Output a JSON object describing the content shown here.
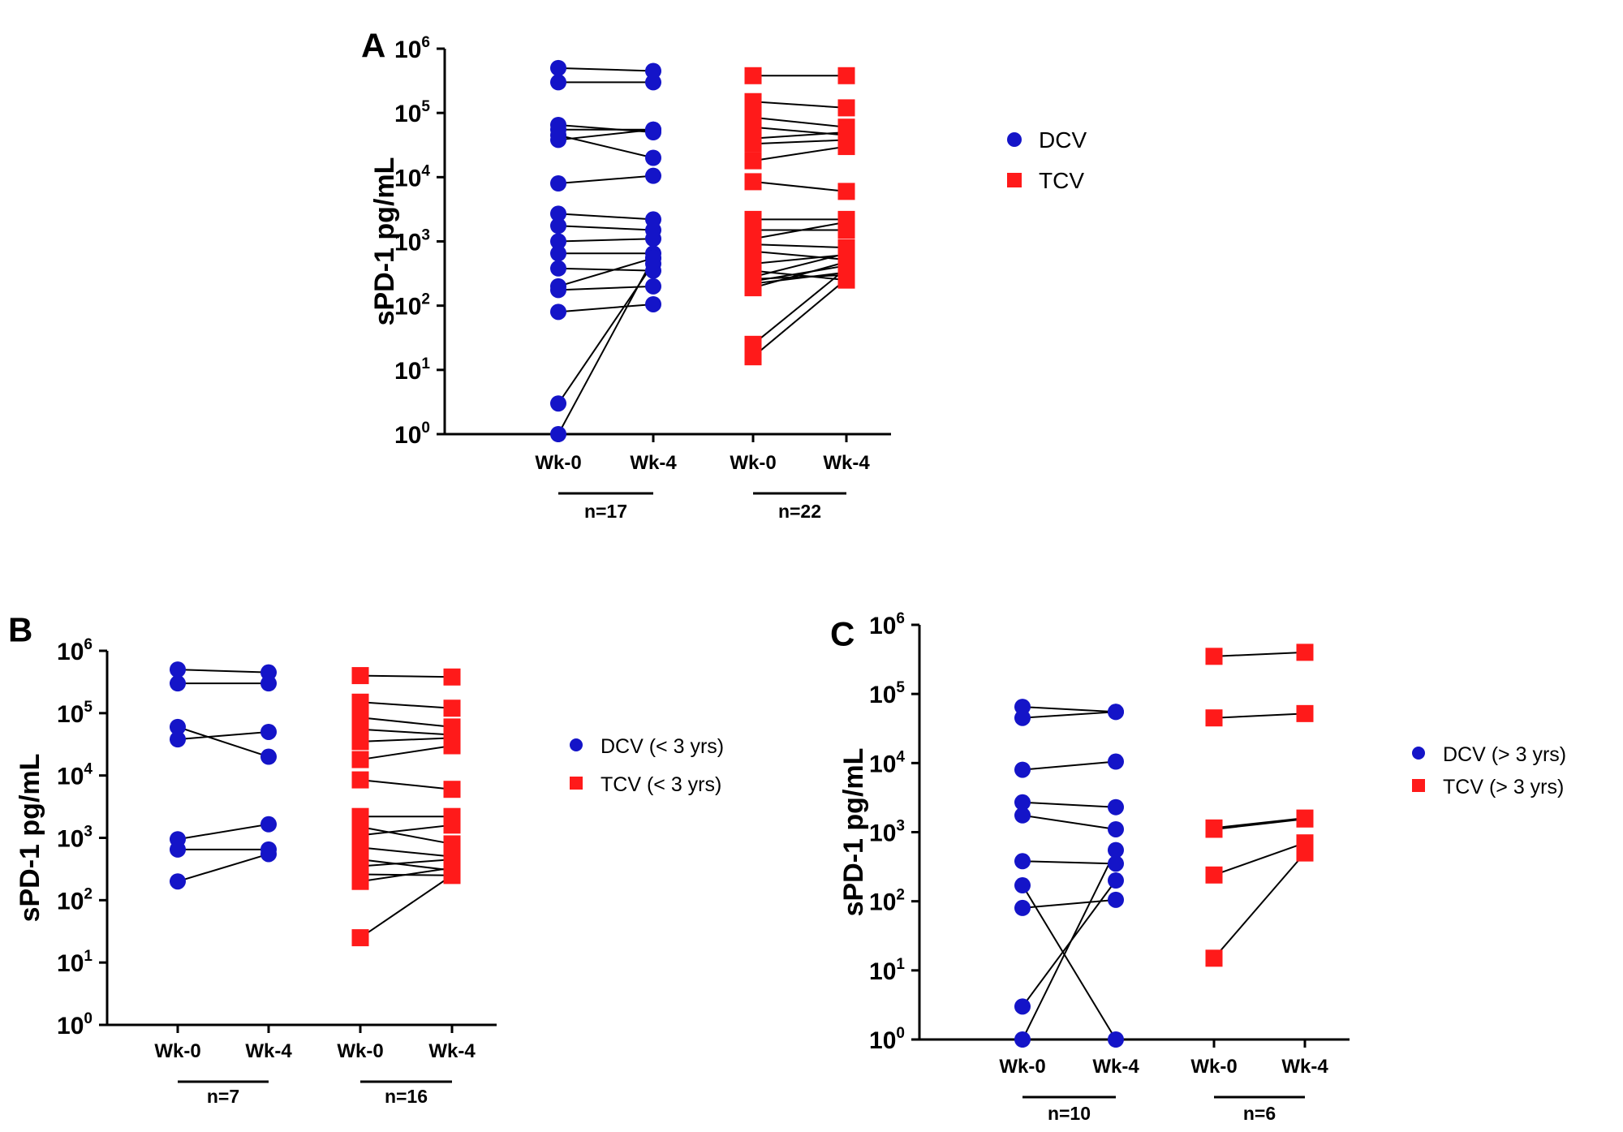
{
  "figure": {
    "panel_letters": [
      "A",
      "B",
      "C"
    ],
    "colors": {
      "dcv": "#1414c8",
      "tcv": "#ff1a1a",
      "line": "#000000"
    }
  },
  "chart_data": [
    {
      "panel": "A",
      "type": "scatter",
      "title": "",
      "ylabel": "sPD-1 pg/mL",
      "yscale": "log",
      "ylim": [
        1,
        1000000
      ],
      "y_tick_labels": [
        "10^0",
        "10^1",
        "10^2",
        "10^3",
        "10^4",
        "10^5",
        "10^6"
      ],
      "categories": [
        "Wk-0",
        "Wk-4",
        "Wk-0",
        "Wk-4"
      ],
      "groups": [
        {
          "label": "n=17",
          "categories": [
            0,
            1
          ]
        },
        {
          "label": "n=22",
          "categories": [
            2,
            3
          ]
        }
      ],
      "legend": {
        "position": "right",
        "entries": [
          "DCV",
          "TCV"
        ]
      },
      "series": [
        {
          "name": "DCV",
          "marker": "circle",
          "color": "#1414c8",
          "x": [
            0,
            1
          ],
          "pairs": [
            [
              500000,
              450000
            ],
            [
              300000,
              300000
            ],
            [
              65000,
              50000
            ],
            [
              55000,
              55000
            ],
            [
              45000,
              20000
            ],
            [
              38000,
              55000
            ],
            [
              8000,
              10500
            ],
            [
              2700,
              2200
            ],
            [
              1750,
              1500
            ],
            [
              1000,
              1100
            ],
            [
              650,
              650
            ],
            [
              380,
              350
            ],
            [
              200,
              550
            ],
            [
              175,
              200
            ],
            [
              80,
              105
            ],
            [
              3,
              450
            ],
            [
              1,
              550
            ]
          ]
        },
        {
          "name": "TCV",
          "marker": "square",
          "color": "#ff1a1a",
          "x": [
            2,
            3
          ],
          "pairs": [
            [
              380000,
              380000
            ],
            [
              150000,
              120000
            ],
            [
              85000,
              60000
            ],
            [
              60000,
              45000
            ],
            [
              40000,
              50000
            ],
            [
              33000,
              38000
            ],
            [
              18000,
              30000
            ],
            [
              8500,
              6000
            ],
            [
              2200,
              2200
            ],
            [
              1500,
              1500
            ],
            [
              1100,
              2000
            ],
            [
              900,
              800
            ],
            [
              700,
              520
            ],
            [
              450,
              620
            ],
            [
              350,
              250
            ],
            [
              280,
              650
            ],
            [
              260,
              300
            ],
            [
              240,
              420
            ],
            [
              220,
              330
            ],
            [
              190,
              480
            ],
            [
              25,
              380
            ],
            [
              16,
              260
            ]
          ]
        }
      ]
    },
    {
      "panel": "B",
      "type": "scatter",
      "title": "",
      "ylabel": "sPD-1 pg/mL",
      "yscale": "log",
      "ylim": [
        1,
        1000000
      ],
      "y_tick_labels": [
        "10^0",
        "10^1",
        "10^2",
        "10^3",
        "10^4",
        "10^5",
        "10^6"
      ],
      "categories": [
        "Wk-0",
        "Wk-4",
        "Wk-0",
        "Wk-4"
      ],
      "groups": [
        {
          "label": "n=7",
          "categories": [
            0,
            1
          ]
        },
        {
          "label": "n=16",
          "categories": [
            2,
            3
          ]
        }
      ],
      "legend": {
        "position": "right",
        "entries": [
          "DCV (< 3 yrs)",
          "TCV (< 3 yrs)"
        ]
      },
      "series": [
        {
          "name": "DCV (< 3 yrs)",
          "marker": "circle",
          "color": "#1414c8",
          "x": [
            0,
            1
          ],
          "pairs": [
            [
              500000,
              450000
            ],
            [
              300000,
              300000
            ],
            [
              60000,
              20000
            ],
            [
              38000,
              50000
            ],
            [
              950,
              1650
            ],
            [
              650,
              650
            ],
            [
              200,
              550
            ]
          ]
        },
        {
          "name": "TCV (< 3 yrs)",
          "marker": "square",
          "color": "#ff1a1a",
          "x": [
            2,
            3
          ],
          "pairs": [
            [
              400000,
              380000
            ],
            [
              150000,
              120000
            ],
            [
              85000,
              60000
            ],
            [
              55000,
              45000
            ],
            [
              35000,
              40000
            ],
            [
              18000,
              30000
            ],
            [
              8500,
              6000
            ],
            [
              2200,
              2200
            ],
            [
              1500,
              800
            ],
            [
              1100,
              1600
            ],
            [
              700,
              500
            ],
            [
              450,
              300
            ],
            [
              350,
              450
            ],
            [
              260,
              250
            ],
            [
              200,
              330
            ],
            [
              25,
              250
            ]
          ]
        }
      ]
    },
    {
      "panel": "C",
      "type": "scatter",
      "title": "",
      "ylabel": "sPD-1 pg/mL",
      "yscale": "log",
      "ylim": [
        1,
        1000000
      ],
      "y_tick_labels": [
        "10^0",
        "10^1",
        "10^2",
        "10^3",
        "10^4",
        "10^5",
        "10^6"
      ],
      "categories": [
        "Wk-0",
        "Wk-4",
        "Wk-0",
        "Wk-4"
      ],
      "groups": [
        {
          "label": "n=10",
          "categories": [
            0,
            1
          ]
        },
        {
          "label": "n=6",
          "categories": [
            2,
            3
          ]
        }
      ],
      "legend": {
        "position": "right",
        "entries": [
          "DCV (> 3 yrs)",
          "TCV (> 3 yrs)"
        ]
      },
      "series": [
        {
          "name": "DCV (> 3 yrs)",
          "marker": "circle",
          "color": "#1414c8",
          "x": [
            0,
            1
          ],
          "pairs": [
            [
              65000,
              55000
            ],
            [
              45000,
              55000
            ],
            [
              8000,
              10500
            ],
            [
              2700,
              2300
            ],
            [
              1750,
              1100
            ],
            [
              380,
              350
            ],
            [
              170,
              1
            ],
            [
              80,
              105
            ],
            [
              3,
              200
            ],
            [
              1,
              550
            ]
          ]
        },
        {
          "name": "TCV (> 3 yrs)",
          "marker": "square",
          "color": "#ff1a1a",
          "x": [
            2,
            3
          ],
          "pairs": [
            [
              350000,
              400000
            ],
            [
              45000,
              52000
            ],
            [
              1150,
              1600
            ],
            [
              1100,
              1550
            ],
            [
              240,
              700
            ],
            [
              15,
              500
            ]
          ]
        }
      ]
    }
  ]
}
